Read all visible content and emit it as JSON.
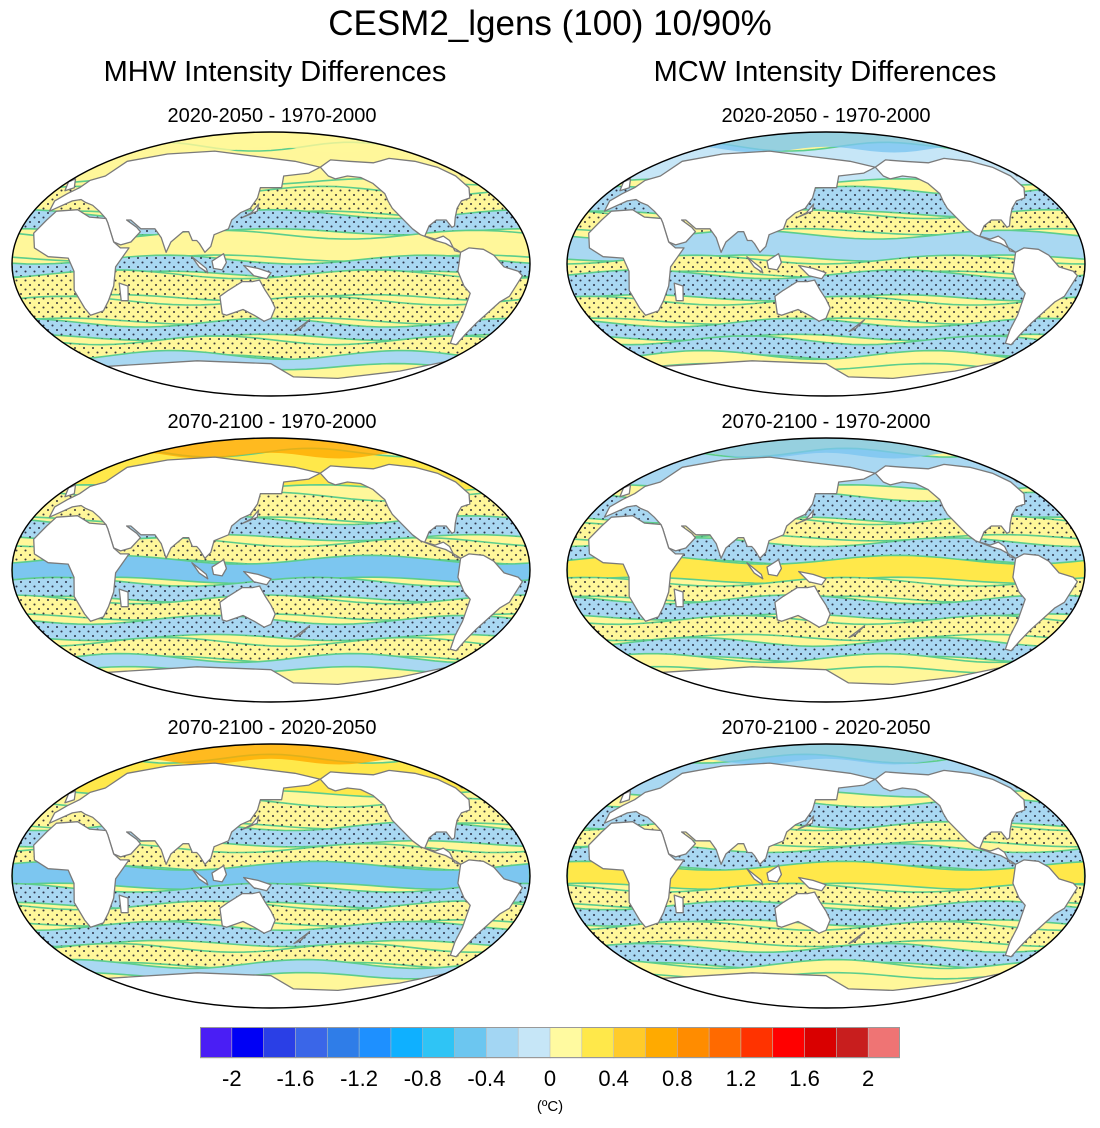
{
  "title": "CESM2_lgens (100) 10/90%",
  "columns": [
    {
      "title": "MHW Intensity Differences"
    },
    {
      "title": "MCW Intensity Differences"
    }
  ],
  "panels": [
    {
      "label": "2020-2050 - 1970-2000",
      "variable": "MHW",
      "tone": "warm-weak"
    },
    {
      "label": "2020-2050 - 1970-2000",
      "variable": "MCW",
      "tone": "cool-weak"
    },
    {
      "label": "2070-2100 - 1970-2000",
      "variable": "MHW",
      "tone": "mixed-cool-equator"
    },
    {
      "label": "2070-2100 - 1970-2000",
      "variable": "MCW",
      "tone": "mixed-warm-equator"
    },
    {
      "label": "2070-2100 - 2020-2050",
      "variable": "MHW",
      "tone": "mixed-cool-equator"
    },
    {
      "label": "2070-2100 - 2020-2050",
      "variable": "MCW",
      "tone": "mixed-warm-equator"
    }
  ],
  "colorbar": {
    "ticks": [
      "-2",
      "-1.6",
      "-1.2",
      "-0.8",
      "-0.4",
      "0",
      "0.4",
      "0.8",
      "1.2",
      "1.6",
      "2"
    ],
    "units": "(ºC)",
    "colors": [
      "#4a1ef5",
      "#0000f5",
      "#2a3fe6",
      "#3a66e8",
      "#2f7de8",
      "#1e90ff",
      "#0fb0ff",
      "#2fc4f5",
      "#6cc6f0",
      "#a3d6f3",
      "#c6e6f7",
      "#fffaa0",
      "#ffe84a",
      "#ffcb2a",
      "#ffaa00",
      "#ff8c00",
      "#ff6a00",
      "#ff3300",
      "#ff0000",
      "#d90000",
      "#c81e1e",
      "#ef7474"
    ]
  },
  "map_colors": {
    "light_blue": "#a9d8f2",
    "pale_blue": "#c6e6f7",
    "mid_blue": "#7cc6f0",
    "pale_yellow": "#fff79a",
    "yellow": "#ffe84a",
    "orange": "#ffaa00",
    "land": "#ffffff",
    "contour": "#5ccd8c",
    "coast": "#7a7a7a",
    "stipple": "#1a1a2e"
  }
}
